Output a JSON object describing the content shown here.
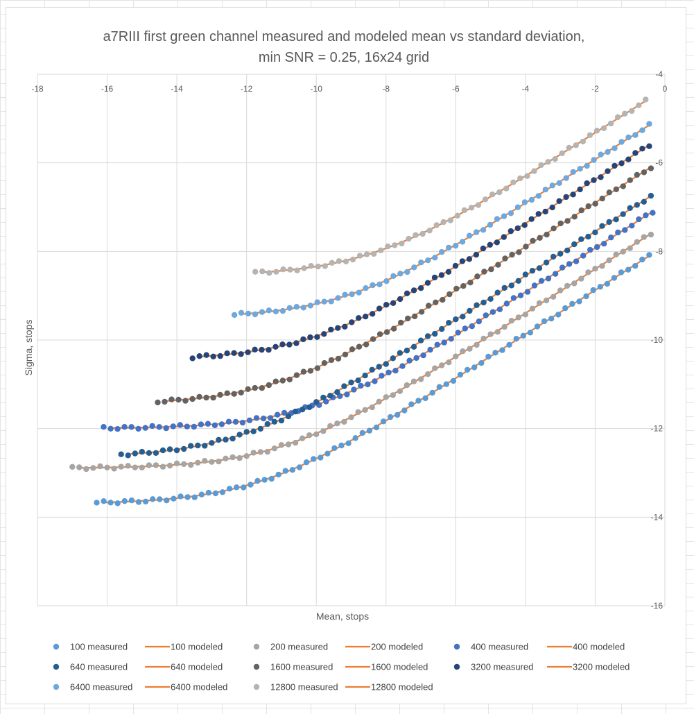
{
  "chart_data": {
    "type": "scatter",
    "title": [
      "a7RIII first green channel measured and modeled mean vs standard deviation,",
      "min SNR = 0.25, 16x24 grid"
    ],
    "xlabel": "Mean, stops",
    "ylabel": "Sigma, stops",
    "xlim": [
      -18,
      0
    ],
    "ylim": [
      -16,
      -4
    ],
    "x_ticks": [
      -18,
      -16,
      -14,
      -12,
      -10,
      -8,
      -6,
      -4,
      -2,
      0
    ],
    "y_ticks": [
      -4,
      -6,
      -8,
      -10,
      -12,
      -14,
      -16
    ],
    "grid": true,
    "legend_position": "bottom",
    "modeled_color": "#ED7D31",
    "series": [
      {
        "name": "100",
        "legend_measured": "100 measured",
        "legend_modeled": "100 modeled",
        "color": "#5B9BD5",
        "read_floor": -13.7,
        "start": -16.3,
        "end": -0.45,
        "top": -8.1
      },
      {
        "name": "200",
        "legend_measured": "200 measured",
        "legend_modeled": "200 modeled",
        "color": "#A5A5A5",
        "read_floor": -12.9,
        "start": -17.0,
        "end": -0.4,
        "top": -7.6
      },
      {
        "name": "400",
        "legend_measured": "400 measured",
        "legend_modeled": "400 modeled",
        "color": "#4472C4",
        "read_floor": -12.0,
        "start": -16.1,
        "end": -0.35,
        "top": -7.1
      },
      {
        "name": "640",
        "legend_measured": "640 measured",
        "legend_modeled": "640 modeled",
        "color": "#255E91",
        "read_floor": -12.65,
        "start": -15.6,
        "end": -0.4,
        "top": -6.75
      },
      {
        "name": "1600",
        "legend_measured": "1600 measured",
        "legend_modeled": "1600 modeled",
        "color": "#636363",
        "read_floor": -11.45,
        "start": -14.55,
        "end": -0.4,
        "top": -6.1
      },
      {
        "name": "3200",
        "legend_measured": "3200 measured",
        "legend_modeled": "3200 modeled",
        "color": "#264478",
        "read_floor": -10.45,
        "start": -13.55,
        "end": -0.45,
        "top": -5.6
      },
      {
        "name": "6400",
        "legend_measured": "6400 measured",
        "legend_modeled": "6400 modeled",
        "color": "#6FA8DC",
        "read_floor": -9.5,
        "start": -12.35,
        "end": -0.45,
        "top": -5.15
      },
      {
        "name": "12800",
        "legend_measured": "12800 measured",
        "legend_modeled": "12800 modeled",
        "color": "#B4B4B4",
        "read_floor": -8.55,
        "start": -11.75,
        "end": -0.55,
        "top": -4.6
      }
    ]
  }
}
